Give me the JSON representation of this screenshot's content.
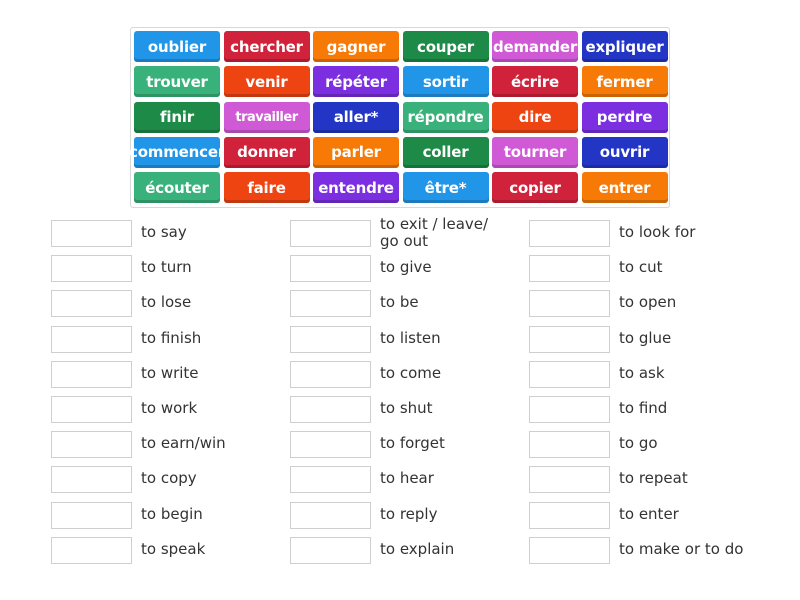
{
  "colors": {
    "blue": "#2196e8",
    "red": "#d0223a",
    "orange": "#f67a05",
    "green": "#1d8a48",
    "pink": "#d05ad6",
    "navy": "#2235c4",
    "mint": "#38b27a",
    "redorange": "#ee4412",
    "purple": "#7b2fe0"
  },
  "tiles": [
    [
      {
        "label": "oublier",
        "color": "blue"
      },
      {
        "label": "chercher",
        "color": "red"
      },
      {
        "label": "gagner",
        "color": "orange"
      },
      {
        "label": "couper",
        "color": "green"
      },
      {
        "label": "demander",
        "color": "pink"
      },
      {
        "label": "expliquer",
        "color": "navy"
      }
    ],
    [
      {
        "label": "trouver",
        "color": "mint"
      },
      {
        "label": "venir",
        "color": "redorange"
      },
      {
        "label": "répéter",
        "color": "purple"
      },
      {
        "label": "sortir",
        "color": "blue"
      },
      {
        "label": "écrire",
        "color": "red"
      },
      {
        "label": "fermer",
        "color": "orange"
      }
    ],
    [
      {
        "label": "finir",
        "color": "green"
      },
      {
        "label": "travailler",
        "color": "pink"
      },
      {
        "label": "aller*",
        "color": "navy"
      },
      {
        "label": "répondre",
        "color": "mint"
      },
      {
        "label": "dire",
        "color": "redorange"
      },
      {
        "label": "perdre",
        "color": "purple"
      }
    ],
    [
      {
        "label": "commencer",
        "color": "blue"
      },
      {
        "label": "donner",
        "color": "red"
      },
      {
        "label": "parler",
        "color": "orange"
      },
      {
        "label": "coller",
        "color": "green"
      },
      {
        "label": "tourner",
        "color": "pink"
      },
      {
        "label": "ouvrir",
        "color": "navy"
      }
    ],
    [
      {
        "label": "écouter",
        "color": "mint"
      },
      {
        "label": "faire",
        "color": "redorange"
      },
      {
        "label": "entendre",
        "color": "purple"
      },
      {
        "label": "être*",
        "color": "blue"
      },
      {
        "label": "copier",
        "color": "red"
      },
      {
        "label": "entrer",
        "color": "orange"
      }
    ]
  ],
  "columns": [
    [
      "to say",
      "to turn",
      "to lose",
      "to finish",
      "to write",
      "to work",
      "to earn/win",
      "to copy",
      "to begin",
      "to speak"
    ],
    [
      "to exit / leave/ go out",
      "to give",
      "to be",
      "to listen",
      "to come",
      "to shut",
      "to forget",
      "to hear",
      "to reply",
      "to explain"
    ],
    [
      "to look for",
      "to cut",
      "to open",
      "to glue",
      "to ask",
      "to find",
      "to go",
      "to repeat",
      "to enter",
      "to make or to do"
    ]
  ]
}
